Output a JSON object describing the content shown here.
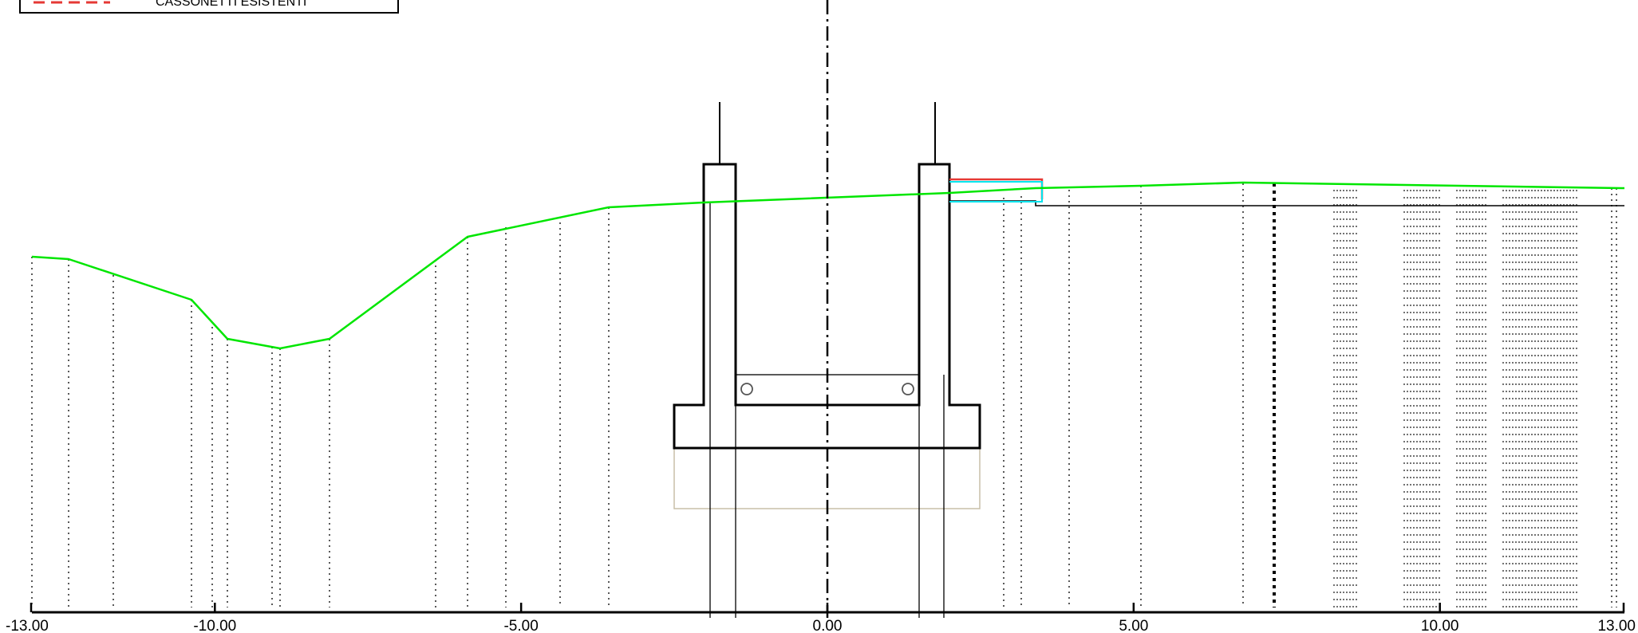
{
  "legend": {
    "label": "CASSONETTI ESISTENTI",
    "swatch_color": "#e53935"
  },
  "colors": {
    "terrain": "#00e600",
    "structure": "#000000",
    "existing_box": "#e53935",
    "new_box": "#00e5ee",
    "hidden_outline": "#c8bfa8"
  },
  "axis": {
    "ticks": [
      {
        "value": -13,
        "label": "-13.00"
      },
      {
        "value": -10,
        "label": "-10.00"
      },
      {
        "value": -5,
        "label": "-5.00"
      },
      {
        "value": 0,
        "label": "0.00"
      },
      {
        "value": 5,
        "label": "5.00"
      },
      {
        "value": 10,
        "label": "10.00"
      },
      {
        "value": 13,
        "label": "13.00"
      }
    ]
  }
}
